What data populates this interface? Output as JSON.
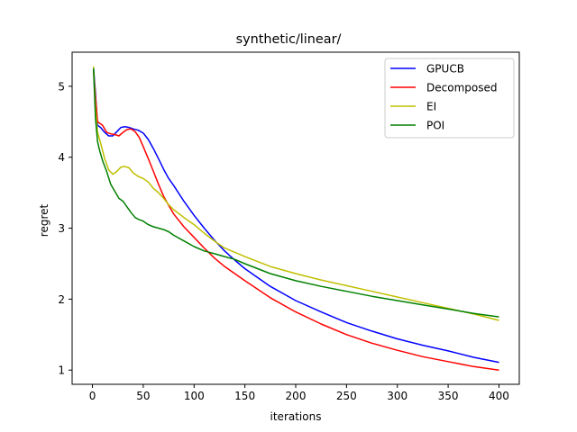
{
  "chart_data": {
    "type": "line",
    "title": "synthetic/linear/",
    "xlabel": "iterations",
    "ylabel": "regret",
    "xlim": [
      -20,
      420
    ],
    "ylim": [
      0.8,
      5.48
    ],
    "xticks": [
      0,
      50,
      100,
      150,
      200,
      250,
      300,
      350,
      400
    ],
    "yticks": [
      1,
      2,
      3,
      4,
      5
    ],
    "grid": false,
    "legend": "top-right",
    "series": [
      {
        "name": "GPUCB",
        "color": "#0000ff",
        "x": [
          1,
          3,
          5,
          8,
          12,
          16,
          20,
          24,
          28,
          32,
          36,
          40,
          45,
          50,
          55,
          60,
          65,
          70,
          75,
          80,
          90,
          100,
          110,
          120,
          130,
          140,
          150,
          175,
          200,
          225,
          250,
          275,
          300,
          325,
          350,
          375,
          400
        ],
        "y": [
          5.27,
          4.9,
          4.45,
          4.42,
          4.35,
          4.3,
          4.3,
          4.36,
          4.42,
          4.43,
          4.42,
          4.4,
          4.38,
          4.34,
          4.25,
          4.12,
          3.98,
          3.83,
          3.7,
          3.6,
          3.38,
          3.18,
          3.0,
          2.83,
          2.68,
          2.55,
          2.43,
          2.18,
          1.98,
          1.82,
          1.67,
          1.55,
          1.44,
          1.35,
          1.27,
          1.18,
          1.11
        ]
      },
      {
        "name": "Decomposed",
        "color": "#ff0000",
        "x": [
          1,
          3,
          5,
          7,
          10,
          14,
          18,
          22,
          26,
          30,
          34,
          38,
          42,
          46,
          50,
          55,
          60,
          65,
          70,
          75,
          80,
          90,
          100,
          110,
          120,
          130,
          140,
          150,
          175,
          200,
          225,
          250,
          275,
          300,
          325,
          350,
          375,
          400
        ],
        "y": [
          5.22,
          4.85,
          4.5,
          4.48,
          4.45,
          4.35,
          4.33,
          4.32,
          4.3,
          4.35,
          4.39,
          4.4,
          4.36,
          4.28,
          4.15,
          3.98,
          3.8,
          3.62,
          3.45,
          3.32,
          3.2,
          3.02,
          2.87,
          2.72,
          2.58,
          2.46,
          2.36,
          2.26,
          2.02,
          1.82,
          1.65,
          1.5,
          1.38,
          1.28,
          1.19,
          1.12,
          1.05,
          1.0
        ]
      },
      {
        "name": "EI",
        "color": "#bfbf00",
        "x": [
          1,
          3,
          5,
          8,
          12,
          16,
          20,
          24,
          28,
          32,
          36,
          40,
          45,
          50,
          55,
          60,
          65,
          70,
          75,
          80,
          90,
          100,
          110,
          120,
          130,
          140,
          150,
          175,
          200,
          225,
          250,
          275,
          300,
          325,
          350,
          375,
          400
        ],
        "y": [
          5.28,
          4.7,
          4.35,
          4.2,
          3.98,
          3.82,
          3.76,
          3.8,
          3.86,
          3.87,
          3.85,
          3.78,
          3.73,
          3.7,
          3.65,
          3.56,
          3.5,
          3.42,
          3.33,
          3.26,
          3.15,
          3.05,
          2.93,
          2.82,
          2.72,
          2.66,
          2.6,
          2.46,
          2.36,
          2.27,
          2.19,
          2.11,
          2.03,
          1.95,
          1.87,
          1.79,
          1.7
        ]
      },
      {
        "name": "POI",
        "color": "#008000",
        "x": [
          1,
          3,
          5,
          7,
          10,
          14,
          18,
          22,
          26,
          30,
          34,
          38,
          42,
          46,
          50,
          55,
          60,
          65,
          70,
          75,
          80,
          90,
          100,
          110,
          120,
          130,
          140,
          150,
          175,
          200,
          225,
          250,
          275,
          300,
          325,
          350,
          375,
          400
        ],
        "y": [
          5.25,
          4.55,
          4.22,
          4.1,
          3.95,
          3.8,
          3.62,
          3.52,
          3.42,
          3.38,
          3.3,
          3.22,
          3.15,
          3.12,
          3.1,
          3.05,
          3.02,
          3.0,
          2.98,
          2.95,
          2.9,
          2.82,
          2.74,
          2.68,
          2.64,
          2.6,
          2.56,
          2.5,
          2.36,
          2.26,
          2.18,
          2.11,
          2.04,
          1.98,
          1.92,
          1.86,
          1.8,
          1.75
        ]
      }
    ]
  }
}
